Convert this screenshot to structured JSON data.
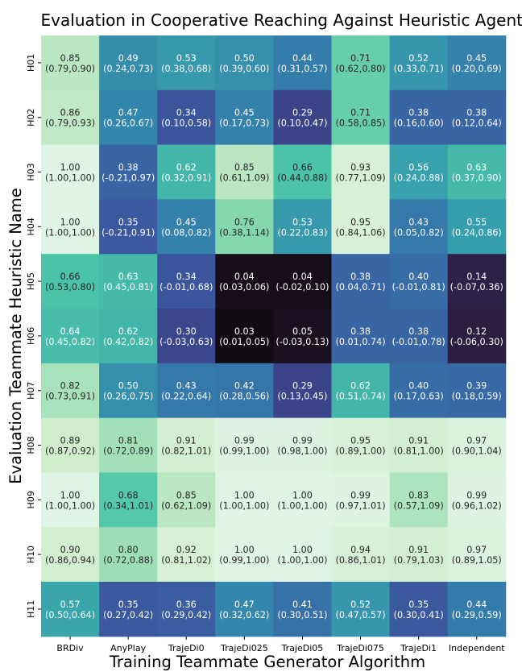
{
  "chart_data": {
    "type": "heatmap",
    "title": "Evaluation in Cooperative Reaching Against Heuristic Agents",
    "xlabel": "Training Teammate Generator Algorithm",
    "ylabel": "Evaluation Teammate Heuristic Name",
    "x_categories": [
      "BRDiv",
      "AnyPlay",
      "TrajeDi0",
      "TrajeDi025",
      "TrajeDi05",
      "TrajeDi075",
      "TrajeDi1",
      "Independent"
    ],
    "y_categories": [
      "H01",
      "H02",
      "H03",
      "H04",
      "H05",
      "H06",
      "H07",
      "H08",
      "H09",
      "H10",
      "H11"
    ],
    "values": [
      [
        0.85,
        0.49,
        0.53,
        0.5,
        0.44,
        0.71,
        0.52,
        0.45
      ],
      [
        0.86,
        0.47,
        0.34,
        0.45,
        0.29,
        0.71,
        0.38,
        0.38
      ],
      [
        1.0,
        0.38,
        0.62,
        0.85,
        0.66,
        0.93,
        0.56,
        0.63
      ],
      [
        1.0,
        0.35,
        0.45,
        0.76,
        0.53,
        0.95,
        0.43,
        0.55
      ],
      [
        0.66,
        0.63,
        0.34,
        0.04,
        0.04,
        0.38,
        0.4,
        0.14
      ],
      [
        0.64,
        0.62,
        0.3,
        0.03,
        0.05,
        0.38,
        0.38,
        0.12
      ],
      [
        0.82,
        0.5,
        0.43,
        0.42,
        0.29,
        0.62,
        0.4,
        0.39
      ],
      [
        0.89,
        0.81,
        0.91,
        0.99,
        0.99,
        0.95,
        0.91,
        0.97
      ],
      [
        1.0,
        0.68,
        0.85,
        1.0,
        1.0,
        0.99,
        0.83,
        0.99
      ],
      [
        0.9,
        0.8,
        0.92,
        1.0,
        1.0,
        0.94,
        0.91,
        0.97
      ],
      [
        0.57,
        0.35,
        0.36,
        0.47,
        0.41,
        0.52,
        0.35,
        0.44
      ]
    ],
    "value_labels": [
      [
        "0.85",
        "0.49",
        "0.53",
        "0.50",
        "0.44",
        "0.71",
        "0.52",
        "0.45"
      ],
      [
        "0.86",
        "0.47",
        "0.34",
        "0.45",
        "0.29",
        "0.71",
        "0.38",
        "0.38"
      ],
      [
        "1.00",
        "0.38",
        "0.62",
        "0.85",
        "0.66",
        "0.93",
        "0.56",
        "0.63"
      ],
      [
        "1.00",
        "0.35",
        "0.45",
        "0.76",
        "0.53",
        "0.95",
        "0.43",
        "0.55"
      ],
      [
        "0.66",
        "0.63",
        "0.34",
        "0.04",
        "0.04",
        "0.38",
        "0.40",
        "0.14"
      ],
      [
        "0.64",
        "0.62",
        "0.30",
        "0.03",
        "0.05",
        "0.38",
        "0.38",
        "0.12"
      ],
      [
        "0.82",
        "0.50",
        "0.43",
        "0.42",
        "0.29",
        "0.62",
        "0.40",
        "0.39"
      ],
      [
        "0.89",
        "0.81",
        "0.91",
        "0.99",
        "0.99",
        "0.95",
        "0.91",
        "0.97"
      ],
      [
        "1.00",
        "0.68",
        "0.85",
        "1.00",
        "1.00",
        "0.99",
        "0.83",
        "0.99"
      ],
      [
        "0.90",
        "0.80",
        "0.92",
        "1.00",
        "1.00",
        "0.94",
        "0.91",
        "0.97"
      ],
      [
        "0.57",
        "0.35",
        "0.36",
        "0.47",
        "0.41",
        "0.52",
        "0.35",
        "0.44"
      ]
    ],
    "intervals": [
      [
        "(0.79,0.90)",
        "(0.24,0.73)",
        "(0.38,0.68)",
        "(0.39,0.60)",
        "(0.31,0.57)",
        "(0.62,0.80)",
        "(0.33,0.71)",
        "(0.20,0.69)"
      ],
      [
        "(0.79,0.93)",
        "(0.26,0.67)",
        "(0.10,0.58)",
        "(0.17,0.73)",
        "(0.10,0.47)",
        "(0.58,0.85)",
        "(0.16,0.60)",
        "(0.12,0.64)"
      ],
      [
        "(1.00,1.00)",
        "(-0.21,0.97)",
        "(0.32,0.91)",
        "(0.61,1.09)",
        "(0.44,0.88)",
        "(0.77,1.09)",
        "(0.24,0.88)",
        "(0.37,0.90)"
      ],
      [
        "(1.00,1.00)",
        "(-0.21,0.91)",
        "(0.08,0.82)",
        "(0.38,1.14)",
        "(0.22,0.83)",
        "(0.84,1.06)",
        "(0.05,0.82)",
        "(0.24,0.86)"
      ],
      [
        "(0.53,0.80)",
        "(0.45,0.81)",
        "(-0.01,0.68)",
        "(0.03,0.06)",
        "(-0.02,0.10)",
        "(0.04,0.71)",
        "(-0.01,0.81)",
        "(-0.07,0.36)"
      ],
      [
        "(0.45,0.82)",
        "(0.42,0.82)",
        "(-0.03,0.63)",
        "(0.01,0.05)",
        "(-0.03,0.13)",
        "(0.01,0.74)",
        "(-0.01,0.78)",
        "(-0.06,0.30)"
      ],
      [
        "(0.73,0.91)",
        "(0.26,0.75)",
        "(0.22,0.64)",
        "(0.28,0.56)",
        "(0.13,0.45)",
        "(0.51,0.74)",
        "(0.17,0.63)",
        "(0.18,0.59)"
      ],
      [
        "(0.87,0.92)",
        "(0.72,0.89)",
        "(0.82,1.01)",
        "(0.99,1.00)",
        "(0.98,1.00)",
        "(0.89,1.00)",
        "(0.81,1.00)",
        "(0.90,1.04)"
      ],
      [
        "(1.00,1.00)",
        "(0.34,1.01)",
        "(0.62,1.09)",
        "(1.00,1.00)",
        "(1.00,1.00)",
        "(0.97,1.01)",
        "(0.57,1.09)",
        "(0.96,1.02)"
      ],
      [
        "(0.86,0.94)",
        "(0.72,0.88)",
        "(0.81,1.02)",
        "(0.99,1.00)",
        "(1.00,1.00)",
        "(0.86,1.01)",
        "(0.79,1.03)",
        "(0.89,1.05)"
      ],
      [
        "(0.50,0.64)",
        "(0.27,0.42)",
        "(0.29,0.42)",
        "(0.32,0.62)",
        "(0.30,0.51)",
        "(0.47,0.57)",
        "(0.30,0.41)",
        "(0.29,0.59)"
      ]
    ],
    "value_range": [
      0,
      1
    ],
    "colormap": "mako",
    "colormap_stops": [
      "#0b0405",
      "#2a1d3c",
      "#3a2c6b",
      "#3b529c",
      "#347fac",
      "#36a1ad",
      "#4cc5a9",
      "#8fdbb0",
      "#d1eecc",
      "#def5e5"
    ],
    "light_text_color": "#ffffff",
    "dark_text_color": "#262626",
    "grid": false,
    "legend": "none"
  }
}
